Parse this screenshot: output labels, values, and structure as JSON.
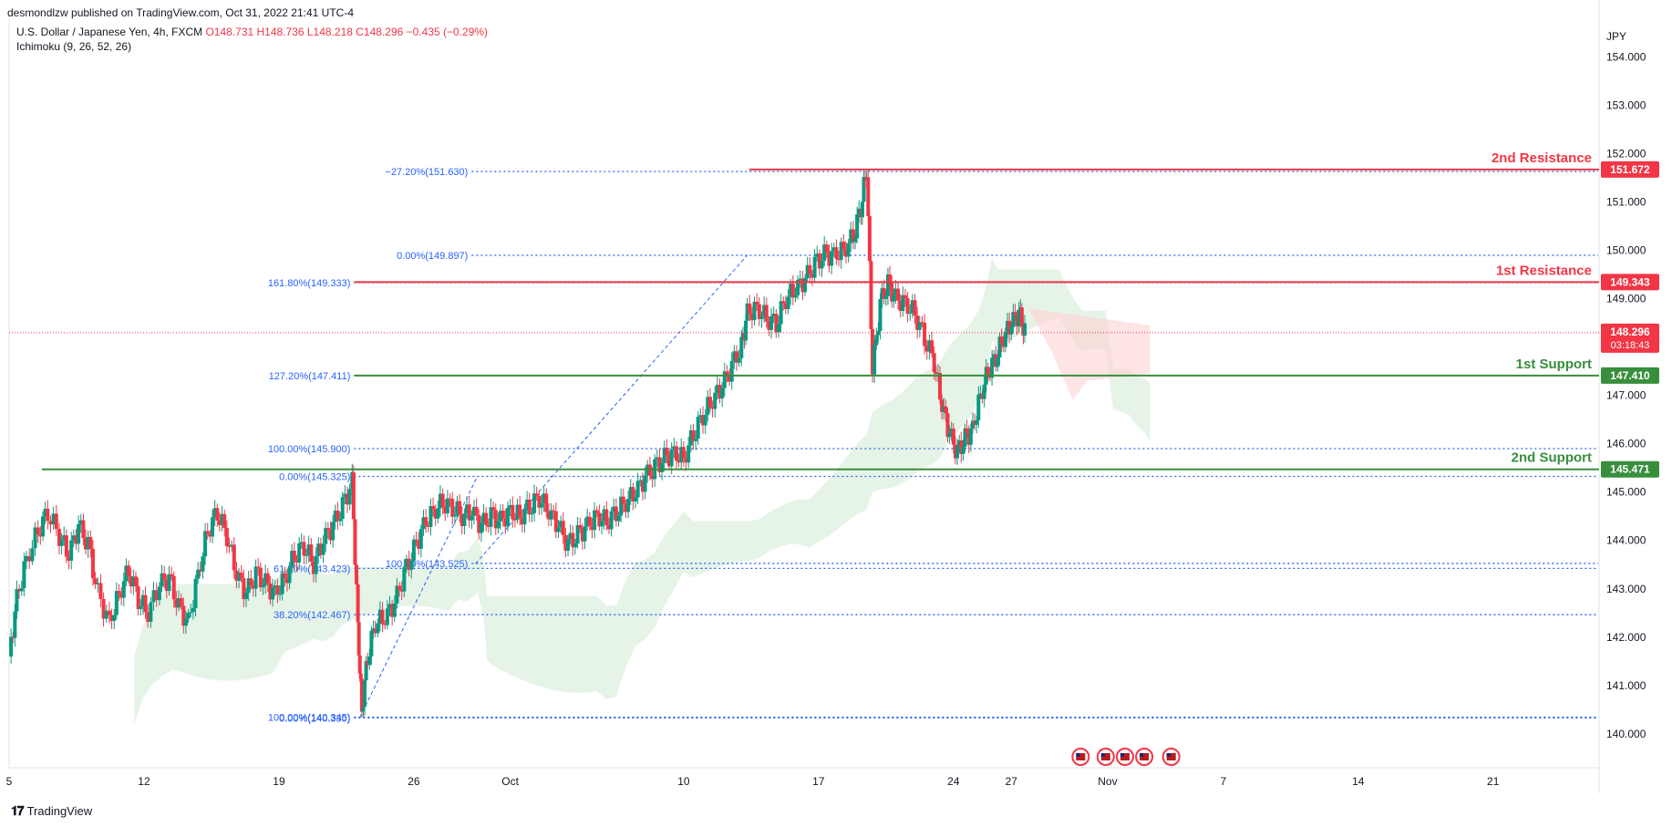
{
  "header": {
    "publisher": "desmondlzw published on TradingView.com, Oct 31, 2022 21:41 UTC-4",
    "symbol": "U.S. Dollar / Japanese Yen, 4h, FXCM",
    "ohlc": "O148.731 H148.736 L148.218 C148.296 −0.435 (−0.29%)",
    "indicator": "Ichimoku (9, 26, 52, 26)"
  },
  "footer": {
    "brand": "TradingView",
    "logo_icon": "tradingview-logo-icon"
  },
  "colors": {
    "resistance": "#f23645",
    "support": "#388e3c",
    "fib": "#2962ff",
    "fib_text": "#2962ff",
    "bull": "#089981",
    "bear": "#f23645",
    "cloud_bull": "#c8e6c9",
    "cloud_bear": "#ffcdd2",
    "current_price": "#f23645",
    "axis_text": "#131722"
  },
  "chart_data": {
    "type": "candlestick",
    "instrument": "U.S. Dollar / Japanese Yen",
    "timeframe": "4h",
    "currency_label": "JPY",
    "y_ticks": [
      140.0,
      141.0,
      142.0,
      143.0,
      144.0,
      145.0,
      146.0,
      147.0,
      148.0,
      149.0,
      150.0,
      151.0,
      152.0,
      153.0,
      154.0
    ],
    "ylim": [
      139.3,
      154.8
    ],
    "x_ticks": [
      {
        "label": "5",
        "day": 5
      },
      {
        "label": "12",
        "day": 12
      },
      {
        "label": "19",
        "day": 19
      },
      {
        "label": "26",
        "day": 26
      },
      {
        "label": "Oct",
        "day": 31
      },
      {
        "label": "10",
        "day": 40
      },
      {
        "label": "17",
        "day": 47
      },
      {
        "label": "24",
        "day": 54
      },
      {
        "label": "27",
        "day": 57
      },
      {
        "label": "Nov",
        "day": 62
      },
      {
        "label": "7",
        "day": 68
      },
      {
        "label": "14",
        "day": 75
      },
      {
        "label": "21",
        "day": 82
      }
    ],
    "xlim": [
      5,
      87.5
    ],
    "levels": [
      {
        "name": "2nd Resistance",
        "value": 151.672,
        "value_label": "151.672",
        "kind": "resistance",
        "from_day": 43.4
      },
      {
        "name": "1st Resistance",
        "value": 149.343,
        "value_label": "149.343",
        "kind": "resistance",
        "from_day": 22.9
      },
      {
        "name": "1st Support",
        "value": 147.41,
        "value_label": "147.410",
        "kind": "support",
        "from_day": 22.9
      },
      {
        "name": "2nd Support",
        "value": 145.471,
        "value_label": "145.471",
        "kind": "support",
        "from_day": 6.7
      }
    ],
    "current_price": {
      "value": 148.296,
      "label": "148.296",
      "countdown": "03:18:43"
    },
    "fib_levels": [
      {
        "label": "−27.20%(151.630)",
        "value": 151.63,
        "from_day": 29.0
      },
      {
        "label": "0.00%(149.897)",
        "value": 149.897,
        "from_day": 29.0
      },
      {
        "label": "161.80%(149.333)",
        "value": 149.333,
        "from_day": 22.9
      },
      {
        "label": "127.20%(147.411)",
        "value": 147.411,
        "from_day": 22.9
      },
      {
        "label": "100.00%(145.900)",
        "value": 145.9,
        "from_day": 22.9
      },
      {
        "label": "0.00%(145.325)",
        "value": 145.325,
        "from_day": 22.9
      },
      {
        "label": "100.00%(143.525)",
        "value": 143.525,
        "from_day": 29.0
      },
      {
        "label": "61.80%(143.423)",
        "value": 143.423,
        "from_day": 22.9
      },
      {
        "label": "38.20%(142.467)",
        "value": 142.467,
        "from_day": 22.9
      },
      {
        "label": "100.00%(140.345)",
        "value": 140.345,
        "from_day": 22.9
      },
      {
        "label": "0.00%(140.330)",
        "value": 140.33,
        "from_day": 22.9
      }
    ],
    "trend_lines": [
      {
        "from": [
          23.2,
          140.34
        ],
        "to": [
          29.3,
          145.33
        ]
      },
      {
        "from": [
          29.2,
          143.52
        ],
        "to": [
          43.3,
          149.9
        ]
      }
    ],
    "events": [
      {
        "day": 60.6,
        "icon": "us-flag-icon"
      },
      {
        "day": 61.9,
        "icon": "us-flag-icon"
      },
      {
        "day": 62.9,
        "icon": "us-flag-icon"
      },
      {
        "day": 63.9,
        "icon": "us-flag-icon"
      },
      {
        "day": 65.3,
        "icon": "us-flag-icon"
      }
    ],
    "price_path": [
      [
        5.0,
        141.6
      ],
      [
        5.4,
        142.8
      ],
      [
        5.9,
        143.6
      ],
      [
        6.5,
        144.2
      ],
      [
        7.0,
        144.6
      ],
      [
        7.6,
        144.1
      ],
      [
        8.1,
        143.7
      ],
      [
        8.6,
        144.3
      ],
      [
        9.1,
        143.9
      ],
      [
        9.6,
        142.9
      ],
      [
        10.2,
        142.3
      ],
      [
        10.7,
        142.9
      ],
      [
        11.2,
        143.4
      ],
      [
        11.7,
        142.8
      ],
      [
        12.2,
        142.5
      ],
      [
        12.8,
        143.1
      ],
      [
        13.3,
        143.2
      ],
      [
        13.8,
        142.6
      ],
      [
        14.3,
        142.3
      ],
      [
        14.8,
        143.3
      ],
      [
        15.3,
        144.2
      ],
      [
        15.8,
        144.6
      ],
      [
        16.3,
        144.1
      ],
      [
        16.8,
        143.3
      ],
      [
        17.3,
        142.9
      ],
      [
        17.8,
        143.3
      ],
      [
        18.3,
        143.1
      ],
      [
        18.8,
        142.9
      ],
      [
        19.3,
        143.2
      ],
      [
        19.8,
        143.7
      ],
      [
        20.3,
        143.9
      ],
      [
        20.8,
        143.5
      ],
      [
        21.3,
        144.0
      ],
      [
        21.8,
        144.3
      ],
      [
        22.3,
        144.7
      ],
      [
        22.8,
        145.2
      ],
      [
        23.1,
        142.2
      ],
      [
        23.3,
        140.5
      ],
      [
        23.6,
        141.6
      ],
      [
        24.0,
        142.3
      ],
      [
        24.5,
        142.4
      ],
      [
        25.0,
        142.7
      ],
      [
        25.5,
        143.3
      ],
      [
        26.0,
        143.8
      ],
      [
        26.5,
        144.3
      ],
      [
        27.0,
        144.6
      ],
      [
        27.5,
        144.8
      ],
      [
        28.0,
        144.7
      ],
      [
        28.5,
        144.5
      ],
      [
        29.0,
        144.6
      ],
      [
        29.5,
        144.3
      ],
      [
        30.0,
        144.5
      ],
      [
        30.5,
        144.4
      ],
      [
        31.0,
        144.6
      ],
      [
        31.5,
        144.5
      ],
      [
        32.0,
        144.7
      ],
      [
        32.5,
        144.9
      ],
      [
        33.0,
        144.6
      ],
      [
        33.5,
        144.3
      ],
      [
        34.0,
        143.9
      ],
      [
        34.5,
        144.1
      ],
      [
        35.0,
        144.3
      ],
      [
        35.5,
        144.5
      ],
      [
        36.0,
        144.4
      ],
      [
        36.5,
        144.6
      ],
      [
        37.0,
        144.8
      ],
      [
        37.5,
        145.0
      ],
      [
        38.0,
        145.3
      ],
      [
        38.5,
        145.5
      ],
      [
        39.0,
        145.7
      ],
      [
        39.5,
        145.8
      ],
      [
        40.0,
        145.7
      ],
      [
        40.5,
        146.2
      ],
      [
        41.0,
        146.6
      ],
      [
        41.5,
        146.9
      ],
      [
        42.0,
        147.2
      ],
      [
        42.5,
        147.6
      ],
      [
        43.0,
        148.0
      ],
      [
        43.3,
        148.7
      ],
      [
        43.8,
        148.8
      ],
      [
        44.3,
        148.6
      ],
      [
        44.8,
        148.5
      ],
      [
        45.3,
        149.0
      ],
      [
        45.8,
        149.2
      ],
      [
        46.3,
        149.4
      ],
      [
        46.8,
        149.7
      ],
      [
        47.3,
        149.9
      ],
      [
        47.8,
        149.9
      ],
      [
        48.3,
        150.0
      ],
      [
        48.8,
        150.3
      ],
      [
        49.2,
        150.9
      ],
      [
        49.5,
        151.7
      ],
      [
        49.8,
        147.5
      ],
      [
        50.2,
        148.9
      ],
      [
        50.6,
        149.3
      ],
      [
        51.0,
        149.0
      ],
      [
        51.5,
        148.9
      ],
      [
        52.0,
        148.7
      ],
      [
        52.5,
        148.2
      ],
      [
        53.0,
        147.7
      ],
      [
        53.4,
        146.8
      ],
      [
        53.8,
        146.2
      ],
      [
        54.2,
        145.8
      ],
      [
        54.6,
        146.1
      ],
      [
        55.0,
        146.3
      ],
      [
        55.4,
        147.0
      ],
      [
        55.8,
        147.5
      ],
      [
        56.2,
        147.8
      ],
      [
        56.6,
        148.2
      ],
      [
        57.0,
        148.5
      ],
      [
        57.4,
        148.7
      ],
      [
        57.7,
        148.3
      ]
    ]
  }
}
